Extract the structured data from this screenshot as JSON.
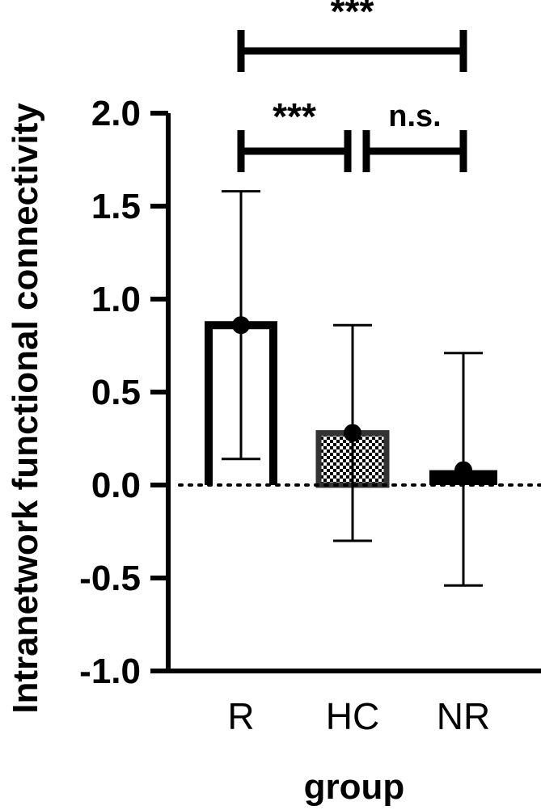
{
  "chart_data": {
    "type": "bar",
    "categories": [
      "R",
      "HC",
      "NR"
    ],
    "values": [
      0.86,
      0.28,
      0.08
    ],
    "error_low": [
      0.14,
      -0.3,
      -0.54
    ],
    "error_high": [
      1.58,
      0.86,
      0.71
    ],
    "bar_styles": [
      "open",
      "checkered",
      "solid"
    ],
    "xlabel": "group",
    "ylabel": "Intranetwork functional connectivity",
    "ylim": [
      -1.0,
      2.0
    ],
    "yticks": [
      "-1.0",
      "-0.5",
      "0.0",
      "0.5",
      "1.0",
      "1.5",
      "2.0"
    ],
    "zero_line": "dotted",
    "grid": false,
    "significance": [
      {
        "from": "R",
        "to": "NR",
        "label": "***"
      },
      {
        "from": "R",
        "to": "HC",
        "label": "***"
      },
      {
        "from": "HC",
        "to": "NR",
        "label": "n.s."
      }
    ]
  }
}
